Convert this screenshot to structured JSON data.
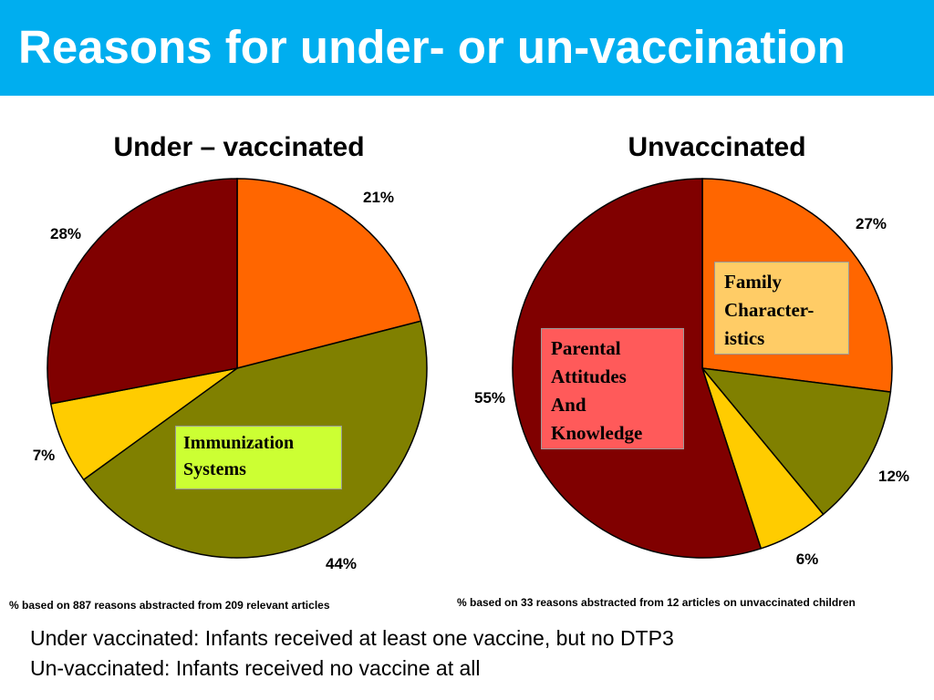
{
  "title": "Reasons for under- or un-vaccination",
  "colors": {
    "header_bg": "#00aeef",
    "family_characteristics": "#ff6600",
    "immunization_systems": "#808000",
    "other": "#ffcc00",
    "parental_attitudes": "#800000"
  },
  "chart_data": [
    {
      "type": "pie",
      "title": "Under – vaccinated",
      "slices": [
        {
          "label": "21%",
          "value": 21,
          "color": "#ff6600"
        },
        {
          "label": "44%",
          "value": 44,
          "color": "#808000"
        },
        {
          "label": "7%",
          "value": 7,
          "color": "#ffcc00"
        },
        {
          "label": "28%",
          "value": 28,
          "color": "#800000"
        }
      ],
      "callout": {
        "text_lines": [
          "Immunization",
          "Systems"
        ],
        "color": "#ccff33"
      },
      "note": "% based on 887 reasons abstracted from 209 relevant articles"
    },
    {
      "type": "pie",
      "title": "Unvaccinated",
      "slices": [
        {
          "label": "27%",
          "value": 27,
          "color": "#ff6600"
        },
        {
          "label": "12%",
          "value": 12,
          "color": "#808000"
        },
        {
          "label": "6%",
          "value": 6,
          "color": "#ffcc00"
        },
        {
          "label": "55%",
          "value": 55,
          "color": "#800000"
        }
      ],
      "callouts": [
        {
          "text_lines": [
            "Family",
            "Character-",
            "istics"
          ],
          "color": "#ffcc66"
        },
        {
          "text_lines": [
            "Parental",
            "Attitudes",
            "And",
            "Knowledge"
          ],
          "color": "#ff5a5a"
        }
      ],
      "note": "% based on 33 reasons abstracted from 12 articles on unvaccinated children"
    }
  ],
  "definitions": [
    "Under vaccinated: Infants received at least one vaccine, but no DTP3",
    "Un-vaccinated: Infants received no vaccine at all"
  ]
}
